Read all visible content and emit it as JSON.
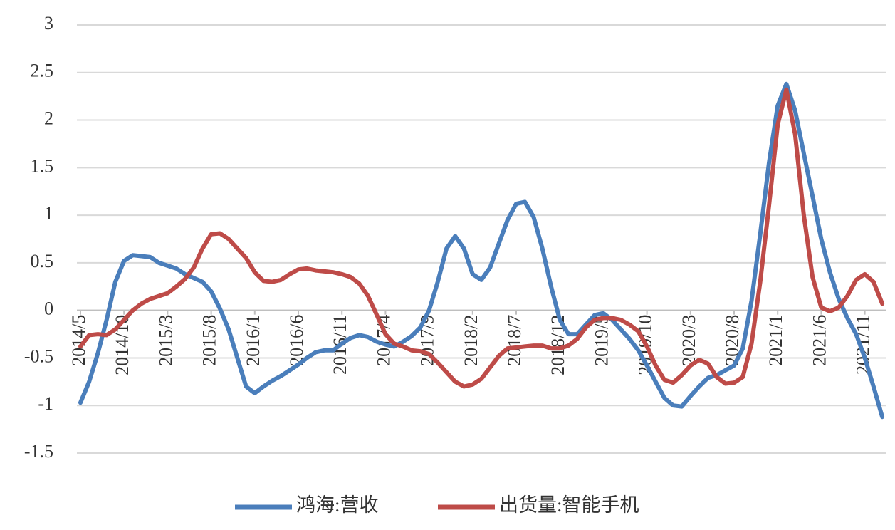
{
  "chart_data": {
    "type": "line",
    "categories": [
      "2014/5",
      null,
      null,
      null,
      null,
      "2014/10",
      null,
      null,
      null,
      null,
      "2015/3",
      null,
      null,
      null,
      null,
      "2015/8",
      null,
      null,
      null,
      null,
      "2016/1",
      null,
      null,
      null,
      null,
      "2016/6",
      null,
      null,
      null,
      null,
      "2016/11",
      null,
      null,
      null,
      null,
      "2017/4",
      null,
      null,
      null,
      null,
      "2017/9",
      null,
      null,
      null,
      null,
      "2018/2",
      null,
      null,
      null,
      null,
      "2018/7",
      null,
      null,
      null,
      null,
      "2018/12",
      null,
      null,
      null,
      null,
      "2019/5",
      null,
      null,
      null,
      null,
      "2019/10",
      null,
      null,
      null,
      null,
      "2020/3",
      null,
      null,
      null,
      null,
      "2020/8",
      null,
      null,
      null,
      null,
      "2021/1",
      null,
      null,
      null,
      null,
      "2021/6",
      null,
      null,
      null,
      null,
      "2021/11",
      null,
      null
    ],
    "series": [
      {
        "name": "鸿海:营收",
        "color": "#4a7ebb",
        "values": [
          -0.97,
          -0.75,
          -0.45,
          -0.1,
          0.3,
          0.52,
          0.58,
          0.57,
          0.56,
          0.5,
          0.47,
          0.44,
          0.38,
          0.34,
          0.3,
          0.2,
          0.02,
          -0.2,
          -0.5,
          -0.8,
          -0.87,
          -0.8,
          -0.74,
          -0.69,
          -0.63,
          -0.57,
          -0.5,
          -0.44,
          -0.42,
          -0.42,
          -0.35,
          -0.29,
          -0.26,
          -0.28,
          -0.33,
          -0.36,
          -0.38,
          -0.33,
          -0.27,
          -0.18,
          0.0,
          0.3,
          0.65,
          0.78,
          0.65,
          0.38,
          0.32,
          0.45,
          0.7,
          0.95,
          1.12,
          1.14,
          0.98,
          0.65,
          0.25,
          -0.1,
          -0.25,
          -0.25,
          -0.15,
          -0.05,
          -0.03,
          -0.1,
          -0.2,
          -0.3,
          -0.42,
          -0.58,
          -0.75,
          -0.92,
          -1.0,
          -1.01,
          -0.9,
          -0.8,
          -0.71,
          -0.68,
          -0.63,
          -0.58,
          -0.4,
          0.1,
          0.8,
          1.55,
          2.15,
          2.38,
          2.1,
          1.65,
          1.2,
          0.75,
          0.4,
          0.12,
          -0.08,
          -0.25,
          -0.5,
          -0.8,
          -1.12
        ]
      },
      {
        "name": "出货量:智能手机",
        "color": "#be4b48",
        "values": [
          -0.38,
          -0.26,
          -0.25,
          -0.26,
          -0.2,
          -0.1,
          0.0,
          0.07,
          0.12,
          0.15,
          0.18,
          0.25,
          0.33,
          0.45,
          0.65,
          0.8,
          0.81,
          0.75,
          0.65,
          0.55,
          0.4,
          0.31,
          0.3,
          0.32,
          0.38,
          0.43,
          0.44,
          0.42,
          0.41,
          0.4,
          0.38,
          0.35,
          0.28,
          0.15,
          -0.05,
          -0.25,
          -0.35,
          -0.38,
          -0.42,
          -0.43,
          -0.46,
          -0.55,
          -0.65,
          -0.75,
          -0.8,
          -0.78,
          -0.72,
          -0.6,
          -0.48,
          -0.4,
          -0.39,
          -0.38,
          -0.37,
          -0.37,
          -0.4,
          -0.4,
          -0.37,
          -0.3,
          -0.18,
          -0.1,
          -0.08,
          -0.08,
          -0.1,
          -0.15,
          -0.22,
          -0.38,
          -0.58,
          -0.73,
          -0.76,
          -0.68,
          -0.58,
          -0.52,
          -0.56,
          -0.7,
          -0.77,
          -0.76,
          -0.7,
          -0.35,
          0.3,
          1.1,
          1.95,
          2.32,
          1.85,
          1.0,
          0.35,
          0.03,
          -0.01,
          0.03,
          0.15,
          0.32,
          0.38,
          0.3,
          0.07
        ]
      }
    ],
    "ylim": [
      -1.5,
      3
    ],
    "yticks": [
      3,
      2.5,
      2,
      1.5,
      1,
      0.5,
      0,
      -0.5,
      -1,
      -1.5
    ],
    "grid": true,
    "legend": "bottom"
  }
}
